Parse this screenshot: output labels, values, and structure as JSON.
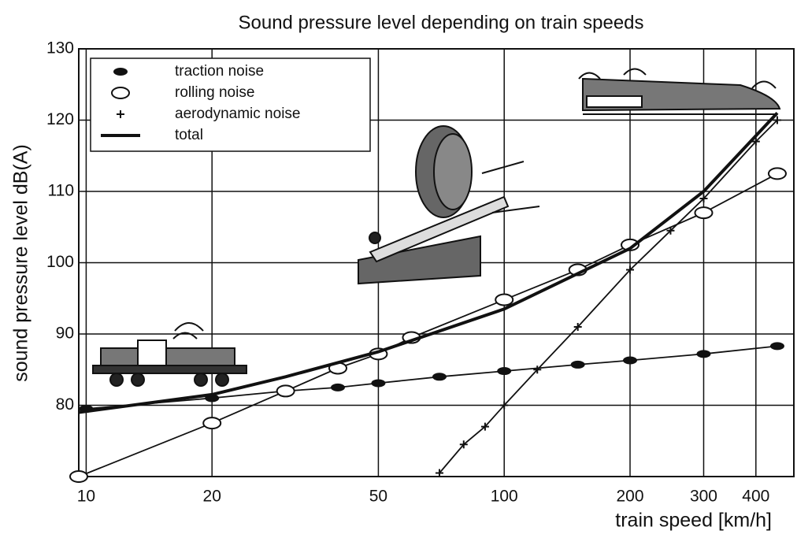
{
  "chart_data": {
    "type": "line",
    "title": "Sound pressure level depending on train speeds",
    "x_label": "train speed [km/h]",
    "y_label": "sound pressure level dB(A)",
    "x_scale": "log",
    "xlim": [
      9.6,
      493
    ],
    "ylim": [
      70,
      130
    ],
    "xticks": [
      10,
      20,
      50,
      100,
      200,
      300,
      400
    ],
    "yticks": [
      80,
      90,
      100,
      110,
      120,
      130
    ],
    "grid": true,
    "legend": "upper left",
    "series": [
      {
        "name": "traction noise",
        "color": "#111111",
        "marker": "filled-ellipse",
        "x": [
          10,
          20,
          30,
          40,
          50,
          70,
          100,
          150,
          200,
          300,
          450
        ],
        "values": [
          79.5,
          81,
          82,
          82.5,
          83.1,
          84,
          84.8,
          85.7,
          86.3,
          87.2,
          88.3
        ]
      },
      {
        "name": "rolling noise",
        "color": "#111111",
        "marker": "open-ellipse",
        "x": [
          9.6,
          20,
          30,
          40,
          50,
          60,
          100,
          150,
          200,
          300,
          450
        ],
        "values": [
          70,
          77.5,
          82,
          85.2,
          87.2,
          89.5,
          94.8,
          99,
          102.5,
          107,
          112.5
        ]
      },
      {
        "name": "aerodynamic noise",
        "color": "#111111",
        "marker": "plus",
        "x": [
          70,
          80,
          90,
          100,
          120,
          150,
          200,
          250,
          300,
          400,
          450
        ],
        "values": [
          70.5,
          74.5,
          77,
          80,
          85,
          91,
          99,
          104.5,
          109,
          117,
          120
        ]
      },
      {
        "name": "total",
        "color": "#111111",
        "marker": "none",
        "x": [
          9.6,
          20,
          30,
          50,
          100,
          200,
          300,
          450
        ],
        "values": [
          79,
          81.5,
          84,
          87.5,
          93.5,
          102,
          110,
          121
        ]
      }
    ]
  }
}
